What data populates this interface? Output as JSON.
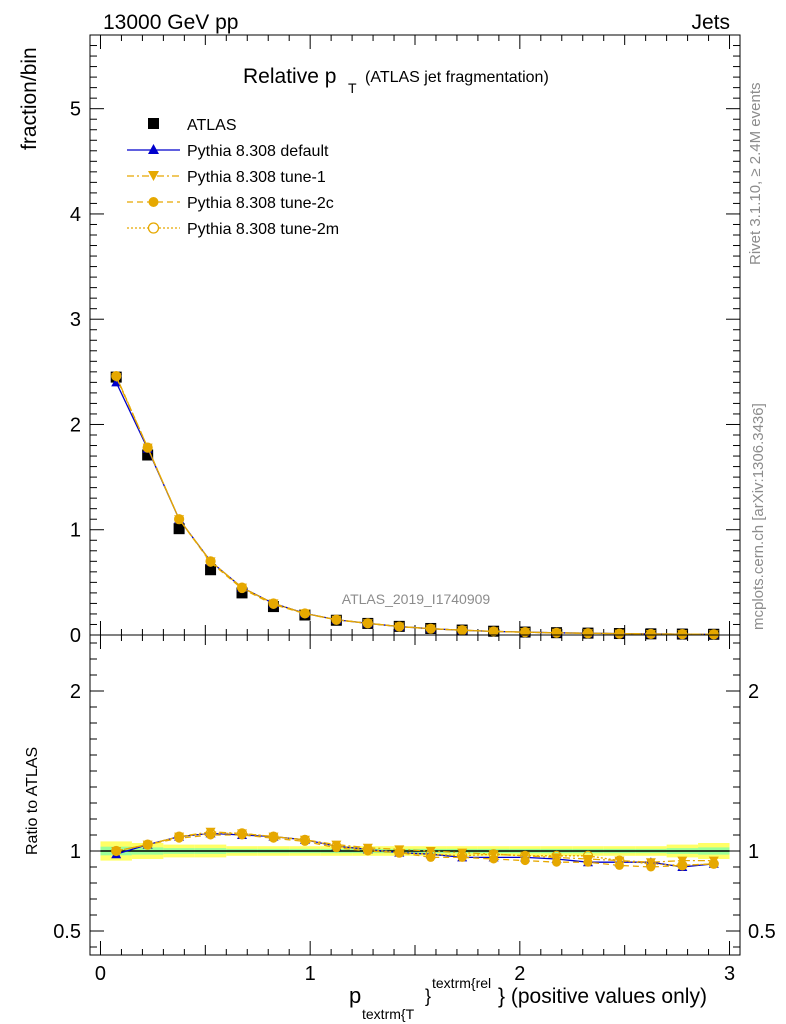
{
  "header": {
    "left": "13000 GeV pp",
    "right": "Jets"
  },
  "side_text": {
    "version": "Rivet 3.1.10, ≥ 2.4M events",
    "source": "mcplots.cern.ch [arXiv:1306.3436]"
  },
  "chart_data": [
    {
      "type": "line",
      "title_main": "Relative p",
      "title_sub": "T",
      "title_paren": "(ATLAS jet fragmentation)",
      "analysis_label": "ATLAS_2019_I1740909",
      "ylabel": "fraction/bin",
      "ylim": [
        0,
        5.7
      ],
      "yticks": [
        0,
        1,
        2,
        3,
        4,
        5
      ],
      "ytick_labels": [
        "0",
        "1",
        "2",
        "3",
        "4",
        "5"
      ],
      "xlim": [
        -0.05,
        3.05
      ],
      "x": [
        0.075,
        0.225,
        0.375,
        0.525,
        0.675,
        0.825,
        0.975,
        1.125,
        1.275,
        1.425,
        1.575,
        1.725,
        1.875,
        2.025,
        2.175,
        2.325,
        2.475,
        2.625,
        2.775,
        2.925
      ],
      "series": [
        {
          "name": "ATLAS",
          "color": "#000000",
          "marker": "square",
          "values": [
            2.45,
            1.71,
            1.01,
            0.62,
            0.4,
            0.27,
            0.19,
            0.14,
            0.11,
            0.082,
            0.062,
            0.047,
            0.036,
            0.028,
            0.022,
            0.018,
            0.014,
            0.011,
            0.009,
            0.007
          ]
        },
        {
          "name": "Pythia 8.308 default",
          "color": "#0000cc",
          "marker": "triangle-up",
          "dash": "solid",
          "values": [
            2.4,
            1.77,
            1.1,
            0.7,
            0.45,
            0.3,
            0.205,
            0.145,
            0.111,
            0.08,
            0.06,
            0.045,
            0.034,
            0.027,
            0.021,
            0.017,
            0.013,
            0.01,
            0.008,
            0.006
          ]
        },
        {
          "name": "Pythia 8.308 tune-1",
          "color": "#e6a800",
          "marker": "triangle-down",
          "dash": "dashdot",
          "values": [
            2.45,
            1.78,
            1.1,
            0.7,
            0.45,
            0.3,
            0.205,
            0.145,
            0.112,
            0.081,
            0.061,
            0.046,
            0.035,
            0.027,
            0.021,
            0.017,
            0.013,
            0.01,
            0.008,
            0.007
          ]
        },
        {
          "name": "Pythia 8.308 tune-2c",
          "color": "#e6a800",
          "marker": "circle",
          "dash": "dashed",
          "values": [
            2.46,
            1.78,
            1.1,
            0.69,
            0.44,
            0.29,
            0.203,
            0.144,
            0.11,
            0.079,
            0.059,
            0.045,
            0.034,
            0.026,
            0.02,
            0.016,
            0.013,
            0.01,
            0.008,
            0.006
          ]
        },
        {
          "name": "Pythia 8.308 tune-2m",
          "color": "#e6a800",
          "marker": "circle-open",
          "dash": "dotted",
          "values": [
            2.46,
            1.78,
            1.1,
            0.7,
            0.45,
            0.3,
            0.205,
            0.145,
            0.111,
            0.08,
            0.06,
            0.045,
            0.034,
            0.027,
            0.021,
            0.017,
            0.013,
            0.01,
            0.008,
            0.006
          ]
        }
      ]
    },
    {
      "type": "line",
      "ylabel": "Ratio to ATLAS",
      "ylim": [
        0.35,
        2.35
      ],
      "yticks": [
        0.5,
        1,
        2
      ],
      "ytick_labels": [
        "0.5",
        "1",
        "2"
      ],
      "xlim": [
        -0.05,
        3.05
      ],
      "xticks": [
        0,
        1,
        2,
        3
      ],
      "xtick_labels": [
        "0",
        "1",
        "2",
        "3"
      ],
      "xlabel_p": "p",
      "xlabel_sub": "textrm{T",
      "xlabel_sup": "textrm{rel",
      "xlabel_rest": "} (positive values only)",
      "reference_band": {
        "color": "#ffff66",
        "inner_color": "#99ff99",
        "half_width": [
          0.06,
          0.05,
          0.04,
          0.04,
          0.03,
          0.03,
          0.03,
          0.03,
          0.03,
          0.03,
          0.03,
          0.03,
          0.03,
          0.03,
          0.03,
          0.03,
          0.03,
          0.03,
          0.04,
          0.05
        ]
      },
      "x": [
        0.075,
        0.225,
        0.375,
        0.525,
        0.675,
        0.825,
        0.975,
        1.125,
        1.275,
        1.425,
        1.575,
        1.725,
        1.875,
        2.025,
        2.175,
        2.325,
        2.475,
        2.625,
        2.775,
        2.925
      ],
      "series": [
        {
          "name": "ATLAS",
          "color": "#00aa00",
          "values": [
            1,
            1,
            1,
            1,
            1,
            1,
            1,
            1,
            1,
            1,
            1,
            1,
            1,
            1,
            1,
            1,
            1,
            1,
            1,
            1
          ]
        },
        {
          "name": "Pythia 8.308 default",
          "color": "#0000cc",
          "marker": "triangle-up",
          "dash": "solid",
          "values": [
            0.98,
            1.04,
            1.09,
            1.11,
            1.1,
            1.09,
            1.07,
            1.03,
            1.01,
            0.99,
            0.98,
            0.96,
            0.96,
            0.96,
            0.95,
            0.93,
            0.93,
            0.93,
            0.9,
            0.92
          ]
        },
        {
          "name": "Pythia 8.308 tune-1",
          "color": "#e6a800",
          "marker": "triangle-down",
          "dash": "dashdot",
          "values": [
            1.0,
            1.04,
            1.09,
            1.12,
            1.11,
            1.09,
            1.07,
            1.04,
            1.02,
            1.01,
            1.0,
            0.99,
            0.98,
            0.97,
            0.96,
            0.95,
            0.94,
            0.93,
            0.94,
            0.94
          ]
        },
        {
          "name": "Pythia 8.308 tune-2c",
          "color": "#e6a800",
          "marker": "circle",
          "dash": "dashed",
          "values": [
            1.0,
            1.04,
            1.08,
            1.1,
            1.1,
            1.08,
            1.06,
            1.02,
            1.0,
            0.99,
            0.96,
            0.96,
            0.95,
            0.94,
            0.93,
            0.93,
            0.91,
            0.9,
            0.91,
            0.92
          ]
        },
        {
          "name": "Pythia 8.308 tune-2m",
          "color": "#e6a800",
          "marker": "circle-open",
          "dash": "dotted",
          "values": [
            1.0,
            1.04,
            1.09,
            1.11,
            1.11,
            1.09,
            1.07,
            1.03,
            1.01,
            0.99,
            0.98,
            0.97,
            0.98,
            0.97,
            0.97,
            0.97,
            0.94,
            0.92,
            0.91,
            0.92
          ]
        }
      ]
    }
  ]
}
